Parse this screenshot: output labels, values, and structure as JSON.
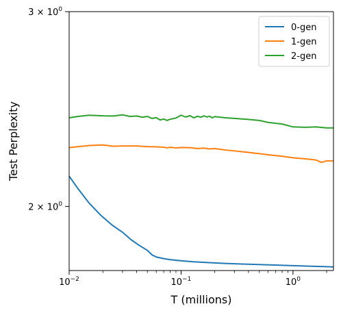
{
  "chart_data": {
    "type": "line",
    "xlabel": "T (millions)",
    "ylabel": "Test Perplexity",
    "x_scale": "log",
    "y_scale": "log",
    "xlim": [
      0.01,
      2.3
    ],
    "ylim": [
      1.75,
      3.0
    ],
    "x_ticks": [
      {
        "value": 0.01,
        "base": "10",
        "exp": "−2"
      },
      {
        "value": 0.1,
        "base": "10",
        "exp": "−1"
      },
      {
        "value": 1,
        "base": "10",
        "exp": "0"
      }
    ],
    "y_ticks": [
      {
        "value": 2,
        "mant": "2 × 10",
        "exp": "0"
      },
      {
        "value": 3,
        "mant": "3 × 10",
        "exp": "0"
      }
    ],
    "grid": false,
    "legend_position": "top-right",
    "series": [
      {
        "name": "0-gen",
        "color": "#1f77b4",
        "x": [
          0.01,
          0.012,
          0.015,
          0.019,
          0.024,
          0.03,
          0.036,
          0.042,
          0.05,
          0.055,
          0.06,
          0.07,
          0.08,
          0.1,
          0.13,
          0.18,
          0.25,
          0.35,
          0.5,
          0.7,
          1.0,
          1.4,
          2.0,
          2.3
        ],
        "y": [
          2.13,
          2.075,
          2.015,
          1.965,
          1.925,
          1.895,
          1.865,
          1.845,
          1.825,
          1.808,
          1.8,
          1.794,
          1.79,
          1.786,
          1.782,
          1.779,
          1.776,
          1.774,
          1.772,
          1.77,
          1.768,
          1.766,
          1.764,
          1.763
        ]
      },
      {
        "name": "1-gen",
        "color": "#ff7f0e",
        "x": [
          0.01,
          0.012,
          0.015,
          0.02,
          0.025,
          0.03,
          0.04,
          0.05,
          0.06,
          0.07,
          0.075,
          0.08,
          0.09,
          0.1,
          0.12,
          0.14,
          0.16,
          0.18,
          0.2,
          0.25,
          0.3,
          0.4,
          0.5,
          0.6,
          0.8,
          1.0,
          1.3,
          1.6,
          1.8,
          2.0,
          2.3
        ],
        "y": [
          2.26,
          2.265,
          2.27,
          2.273,
          2.267,
          2.268,
          2.268,
          2.265,
          2.264,
          2.262,
          2.259,
          2.262,
          2.259,
          2.261,
          2.26,
          2.256,
          2.258,
          2.254,
          2.256,
          2.249,
          2.245,
          2.238,
          2.232,
          2.227,
          2.22,
          2.213,
          2.208,
          2.203,
          2.192,
          2.199,
          2.199
        ]
      },
      {
        "name": "2-gen",
        "color": "#2ca02c",
        "x": [
          0.01,
          0.012,
          0.015,
          0.02,
          0.025,
          0.03,
          0.035,
          0.04,
          0.045,
          0.05,
          0.055,
          0.06,
          0.065,
          0.07,
          0.075,
          0.08,
          0.09,
          0.1,
          0.11,
          0.12,
          0.13,
          0.14,
          0.15,
          0.16,
          0.17,
          0.18,
          0.19,
          0.2,
          0.25,
          0.3,
          0.4,
          0.5,
          0.6,
          0.8,
          1.0,
          1.3,
          1.6,
          2.0,
          2.3
        ],
        "y": [
          2.405,
          2.412,
          2.418,
          2.415,
          2.414,
          2.42,
          2.412,
          2.414,
          2.408,
          2.412,
          2.402,
          2.406,
          2.394,
          2.399,
          2.392,
          2.398,
          2.404,
          2.418,
          2.409,
          2.416,
          2.405,
          2.413,
          2.408,
          2.415,
          2.409,
          2.413,
          2.405,
          2.411,
          2.405,
          2.402,
          2.397,
          2.392,
          2.382,
          2.374,
          2.36,
          2.358,
          2.36,
          2.355,
          2.355
        ]
      }
    ]
  }
}
